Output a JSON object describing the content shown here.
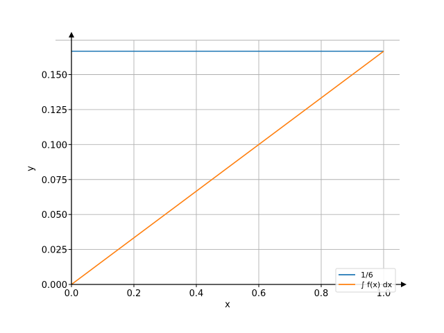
{
  "chart_data": {
    "type": "line",
    "title": "",
    "xlabel": "x",
    "ylabel": "y",
    "xlim": [
      0,
      1
    ],
    "ylim": [
      0,
      0.175
    ],
    "xticks": [
      0.0,
      0.2,
      0.4,
      0.6,
      0.8,
      1.0
    ],
    "xtick_labels": [
      "0.0",
      "0.2",
      "0.4",
      "0.6",
      "0.8",
      "1.0"
    ],
    "yticks": [
      0.0,
      0.025,
      0.05,
      0.075,
      0.1,
      0.125,
      0.15
    ],
    "ytick_labels": [
      "0.000",
      "0.025",
      "0.050",
      "0.075",
      "0.100",
      "0.125",
      "0.150"
    ],
    "grid": true,
    "legend_position": "lower-right",
    "series": [
      {
        "name": "1/6",
        "color": "#1f77b4",
        "x": [
          0,
          1
        ],
        "y": [
          0.16667,
          0.16667
        ]
      },
      {
        "name": "∫ f(x) dx",
        "color": "#ff7f0e",
        "x": [
          0,
          1
        ],
        "y": [
          0,
          0.16667
        ]
      }
    ]
  }
}
